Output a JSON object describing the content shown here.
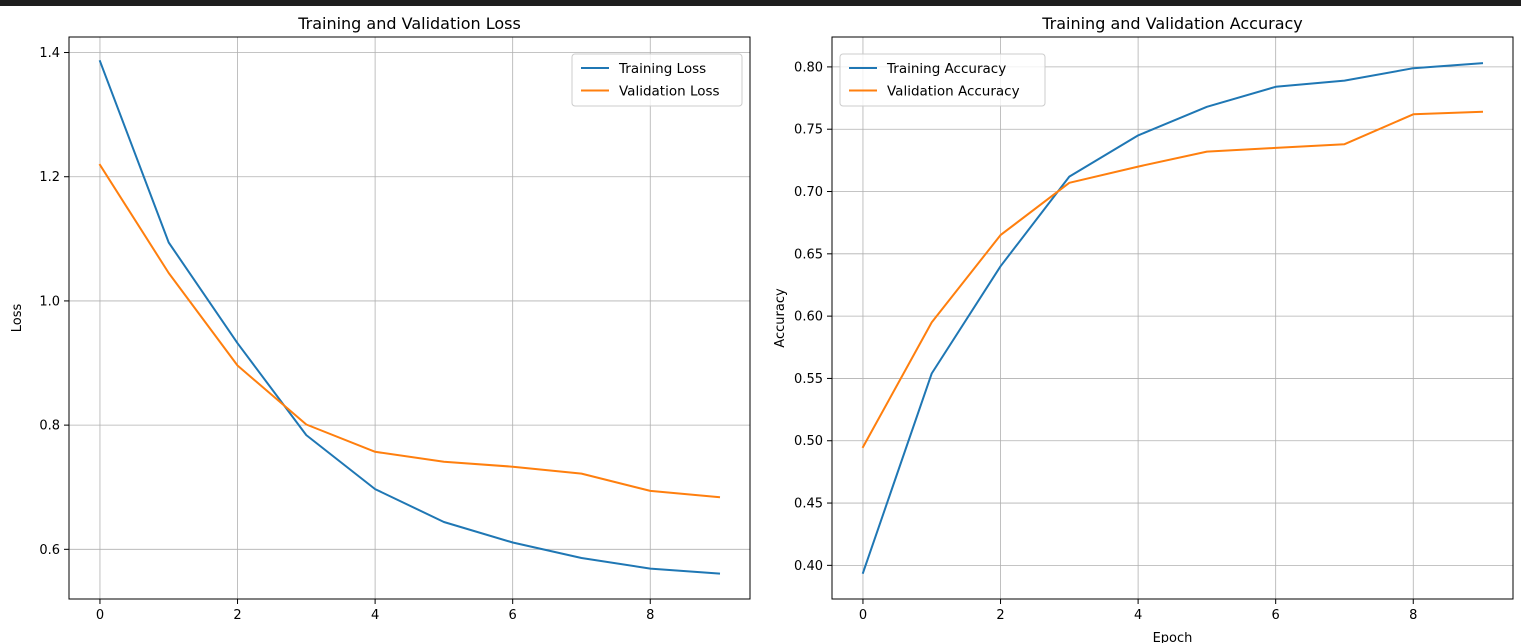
{
  "colors": {
    "training": "#1f77b4",
    "validation": "#ff7f0e",
    "grid": "#b0b0b0",
    "axes": "#000000",
    "legend_border": "#cccccc"
  },
  "chart_data": [
    {
      "type": "line",
      "title": "Training and Validation Loss",
      "xlabel": "",
      "ylabel": "Loss",
      "xlim": [
        -0.45,
        9.45
      ],
      "ylim": [
        0.52,
        1.425
      ],
      "xticks": [
        0,
        2,
        4,
        6,
        8
      ],
      "yticks": [
        0.6,
        0.8,
        1.0,
        1.2,
        1.4
      ],
      "ytick_labels": [
        "0.6",
        "0.8",
        "1.0",
        "1.2",
        "1.4"
      ],
      "grid": true,
      "legend": "upper right",
      "x": [
        0,
        1,
        2,
        3,
        4,
        5,
        6,
        7,
        8,
        9
      ],
      "series": [
        {
          "name": "Training Loss",
          "color_key": "training",
          "values": [
            1.386,
            1.094,
            0.932,
            0.784,
            0.697,
            0.644,
            0.611,
            0.586,
            0.569,
            0.561
          ]
        },
        {
          "name": "Validation Loss",
          "color_key": "validation",
          "values": [
            1.219,
            1.045,
            0.896,
            0.801,
            0.757,
            0.741,
            0.733,
            0.722,
            0.694,
            0.684
          ]
        }
      ]
    },
    {
      "type": "line",
      "title": "Training and Validation Accuracy",
      "xlabel": "Epoch",
      "ylabel": "Accuracy",
      "xlim": [
        -0.45,
        9.45
      ],
      "ylim": [
        0.373,
        0.824
      ],
      "xticks": [
        0,
        2,
        4,
        6,
        8
      ],
      "yticks": [
        0.4,
        0.45,
        0.5,
        0.55,
        0.6,
        0.65,
        0.7,
        0.75,
        0.8
      ],
      "ytick_labels": [
        "0.40",
        "0.45",
        "0.50",
        "0.55",
        "0.60",
        "0.65",
        "0.70",
        "0.75",
        "0.80"
      ],
      "grid": true,
      "legend": "upper left",
      "x": [
        0,
        1,
        2,
        3,
        4,
        5,
        6,
        7,
        8,
        9
      ],
      "series": [
        {
          "name": "Training Accuracy",
          "color_key": "training",
          "values": [
            0.394,
            0.554,
            0.64,
            0.712,
            0.745,
            0.768,
            0.784,
            0.789,
            0.799,
            0.803
          ]
        },
        {
          "name": "Validation Accuracy",
          "color_key": "validation",
          "values": [
            0.495,
            0.595,
            0.665,
            0.707,
            0.72,
            0.732,
            0.735,
            0.738,
            0.762,
            0.764
          ]
        }
      ]
    }
  ]
}
